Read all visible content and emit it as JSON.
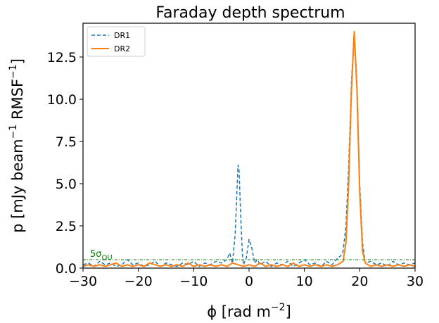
{
  "chart_data": {
    "type": "line",
    "title": "Faraday depth spectrum",
    "xlabel_main": "ϕ [rad m",
    "xlabel_sup": "−2",
    "xlabel_end": "]",
    "ylabel_main": "p [mJy beam",
    "ylabel_sup1": "−1",
    "ylabel_mid": " RMSF",
    "ylabel_sup2": "−1",
    "ylabel_end": "]",
    "xlim": [
      -30,
      30
    ],
    "ylim": [
      0,
      14.5
    ],
    "xticks": [
      -30,
      -20,
      -10,
      0,
      10,
      20,
      30
    ],
    "xtick_labels": [
      "−30",
      "−20",
      "−10",
      "0",
      "10",
      "20",
      "30"
    ],
    "yticks": [
      0.0,
      2.5,
      5.0,
      7.5,
      10.0,
      12.5
    ],
    "ytick_labels": [
      "0.0",
      "2.5",
      "5.0",
      "7.5",
      "10.0",
      "12.5"
    ],
    "grid": false,
    "legend_position": "top-left",
    "series": [
      {
        "name": "DR1",
        "color": "#1f77b4",
        "style": "dashed",
        "x": [
          -30,
          -29,
          -28,
          -27,
          -26,
          -25,
          -24,
          -23,
          -22,
          -21,
          -20,
          -19,
          -18,
          -17,
          -16,
          -15,
          -14,
          -13,
          -12,
          -11,
          -10,
          -9,
          -8,
          -7,
          -6,
          -5,
          -4,
          -3.5,
          -3,
          -2.5,
          -2,
          -1.8,
          -1.5,
          -1.2,
          -1,
          -0.5,
          0,
          0.5,
          1,
          1.5,
          2,
          3,
          4,
          5,
          6,
          7,
          8,
          9,
          10,
          11,
          12,
          13,
          14,
          15,
          16,
          16.5,
          17,
          17.5,
          18,
          18.5,
          19,
          19.5,
          20,
          20.5,
          21,
          22,
          23,
          24,
          25,
          26,
          27,
          28,
          29,
          30
        ],
        "y": [
          0.2,
          0.3,
          0.1,
          0.4,
          0.2,
          0.3,
          0.1,
          0.2,
          0.5,
          0.2,
          0.3,
          0.1,
          0.2,
          0.4,
          0.1,
          0.3,
          0.2,
          0.1,
          0.3,
          0.2,
          0.4,
          0.1,
          0.3,
          0.2,
          0.4,
          0.3,
          0.5,
          0.9,
          0.3,
          2.0,
          6.1,
          5.8,
          3.0,
          0.8,
          0.2,
          0.6,
          1.7,
          1.2,
          0.3,
          0.5,
          0.2,
          0.4,
          0.1,
          0.3,
          0.2,
          0.4,
          0.1,
          0.3,
          0.5,
          0.2,
          0.3,
          0.1,
          0.4,
          0.2,
          0.6,
          0.7,
          1.0,
          2.5,
          6.0,
          11.0,
          14.0,
          11.0,
          5.0,
          1.5,
          0.3,
          0.4,
          0.2,
          0.3,
          0.1,
          0.4,
          0.2,
          0.3,
          0.2,
          0.3
        ]
      },
      {
        "name": "DR2",
        "color": "#ff7f0e",
        "style": "solid",
        "x": [
          -30,
          -29,
          -28,
          -27,
          -26,
          -25,
          -24,
          -23,
          -22,
          -21,
          -20,
          -19,
          -18,
          -17,
          -16,
          -15,
          -14,
          -13,
          -12,
          -11,
          -10,
          -9,
          -8,
          -7,
          -6,
          -5,
          -4,
          -3,
          -2,
          -1,
          0,
          1,
          2,
          3,
          4,
          5,
          6,
          7,
          8,
          9,
          10,
          11,
          12,
          13,
          14,
          15,
          16,
          17,
          17.5,
          18,
          18.5,
          19,
          19.5,
          20,
          20.5,
          21,
          22,
          23,
          24,
          25,
          26,
          27,
          28,
          29,
          30
        ],
        "y": [
          0.1,
          0.2,
          0.1,
          0.2,
          0.1,
          0.2,
          0.3,
          0.1,
          0.2,
          0.1,
          0.2,
          0.1,
          0.3,
          0.2,
          0.1,
          0.2,
          0.1,
          0.2,
          0.1,
          0.3,
          0.1,
          0.2,
          0.1,
          0.2,
          0.1,
          0.2,
          0.1,
          0.3,
          0.2,
          0.1,
          0.2,
          0.1,
          0.3,
          0.1,
          0.2,
          0.1,
          0.2,
          0.1,
          0.3,
          0.1,
          0.2,
          0.1,
          0.2,
          0.1,
          0.2,
          0.1,
          0.2,
          0.4,
          1.5,
          5.0,
          10.5,
          14.0,
          10.5,
          4.5,
          1.0,
          0.3,
          0.1,
          0.2,
          0.1,
          0.2,
          0.1,
          0.2,
          0.1,
          0.2,
          0.1
        ]
      }
    ],
    "threshold": {
      "y": 0.5,
      "color": "#008000",
      "style": "dash-dot",
      "label_main": "5σ",
      "label_sub": "QU"
    }
  }
}
